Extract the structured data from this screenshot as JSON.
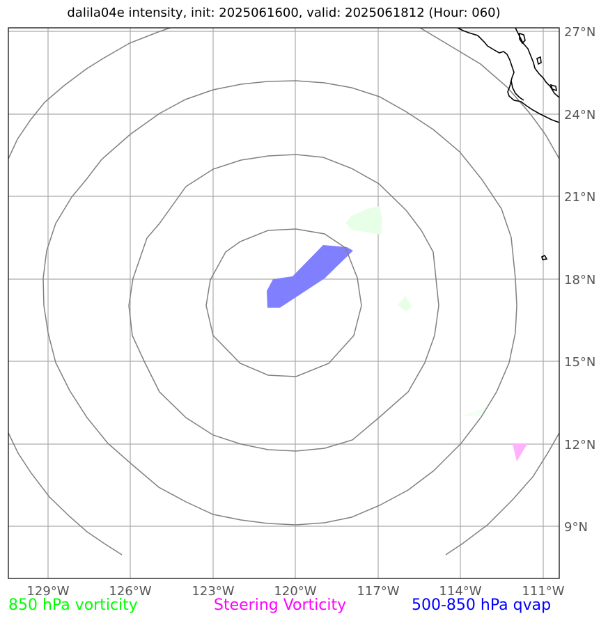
{
  "title": "dalila04e intensity, init: 2025061600, valid: 2025061812 (Hour: 060)",
  "map": {
    "lon_range": [
      -130,
      -110.5
    ],
    "lat_range": [
      7.5,
      27.2
    ],
    "lon_ticks": [
      "129°W",
      "126°W",
      "123°W",
      "120°W",
      "117°W",
      "114°W",
      "111°W"
    ],
    "lat_ticks": [
      "27°N",
      "24°N",
      "21°N",
      "18°N",
      "15°N",
      "12°N",
      "9°N"
    ],
    "range_rings_center": "120°W, 17.2°N",
    "range_ring_count": 4
  },
  "legend": {
    "items": [
      {
        "label": "850 hPa vorticity",
        "color": "#00ff00"
      },
      {
        "label": "Steering Vorticity",
        "color": "#ff00ff"
      },
      {
        "label": "500-850 hPa qvap",
        "color": "#0000ff"
      }
    ]
  },
  "colors": {
    "grid": "#aaaaaa",
    "rings": "#808080",
    "coast": "#000000",
    "qvap_fill": "#8080ff",
    "vort850_fill": "#e6ffe6",
    "steering_fill": "#ffb3ff"
  }
}
